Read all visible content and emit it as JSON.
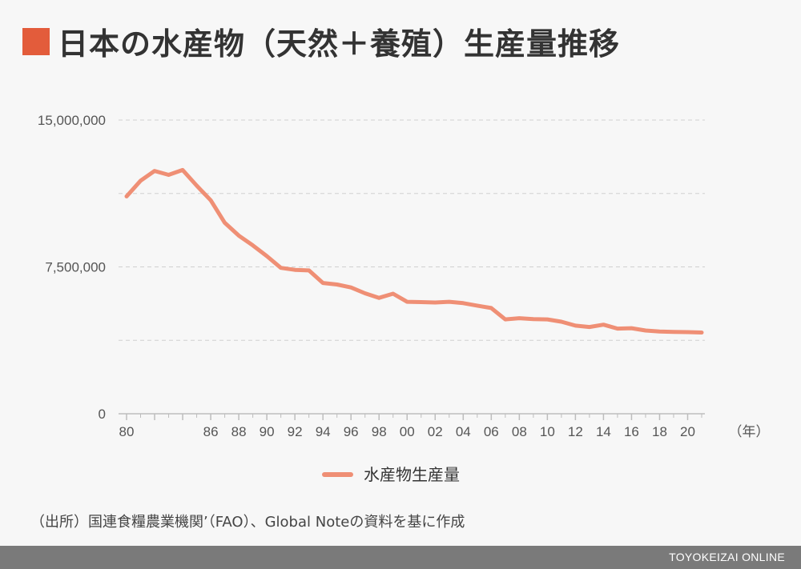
{
  "title": "日本の水産物（天然＋養殖）生産量推移",
  "source": "（出所）国連食糧農業機関’（FAO）、Global Noteの資料を基に作成",
  "brand": "TOYOKEIZAI ONLINE",
  "colors": {
    "title_square": "#e35c3b",
    "series_line": "#ef8f75",
    "grid": "#d0d0d0",
    "axis": "#bdbdbd",
    "text": "#555555",
    "footer": "#7a7a7a"
  },
  "chart_data": {
    "type": "line",
    "x_unit_label": "（年）",
    "ylim": [
      0,
      15000000
    ],
    "y_gridlines": [
      0,
      3750000,
      7500000,
      11250000,
      15000000
    ],
    "y_tick_labels": [
      {
        "value": 0,
        "label": "0"
      },
      {
        "value": 7500000,
        "label": "7,500,000"
      },
      {
        "value": 15000000,
        "label": "15,000,000"
      }
    ],
    "x_range": [
      1980,
      2021
    ],
    "x_tick_labels": [
      {
        "year": 1980,
        "label": "80"
      },
      {
        "year": 1982,
        "label": ""
      },
      {
        "year": 1984,
        "label": ""
      },
      {
        "year": 1986,
        "label": "86"
      },
      {
        "year": 1988,
        "label": "88"
      },
      {
        "year": 1990,
        "label": "90"
      },
      {
        "year": 1992,
        "label": "92"
      },
      {
        "year": 1994,
        "label": "94"
      },
      {
        "year": 1996,
        "label": "96"
      },
      {
        "year": 1998,
        "label": "98"
      },
      {
        "year": 2000,
        "label": "00"
      },
      {
        "year": 2002,
        "label": "02"
      },
      {
        "year": 2004,
        "label": "04"
      },
      {
        "year": 2006,
        "label": "06"
      },
      {
        "year": 2008,
        "label": "08"
      },
      {
        "year": 2010,
        "label": "10"
      },
      {
        "year": 2012,
        "label": "12"
      },
      {
        "year": 2014,
        "label": "14"
      },
      {
        "year": 2016,
        "label": "16"
      },
      {
        "year": 2018,
        "label": "18"
      },
      {
        "year": 2020,
        "label": "20"
      }
    ],
    "x_minor_ticks": [
      1981,
      1983,
      1985,
      1987,
      1989,
      1991,
      1993,
      1995,
      1997,
      1999,
      2001,
      2003,
      2005,
      2007,
      2009,
      2011,
      2013,
      2015,
      2017,
      2019,
      2021
    ],
    "legend_position": "bottom-center",
    "series": [
      {
        "name": "水産物生産量",
        "x": [
          1980,
          1981,
          1982,
          1983,
          1984,
          1985,
          1986,
          1987,
          1988,
          1989,
          1990,
          1991,
          1992,
          1993,
          1994,
          1995,
          1996,
          1997,
          1998,
          1999,
          2000,
          2001,
          2002,
          2003,
          2004,
          2005,
          2006,
          2007,
          2008,
          2009,
          2010,
          2011,
          2012,
          2013,
          2014,
          2015,
          2016,
          2017,
          2018,
          2019,
          2020,
          2021
        ],
        "y": [
          11100000,
          11900000,
          12400000,
          12200000,
          12450000,
          11650000,
          10900000,
          9750000,
          9100000,
          8600000,
          8050000,
          7450000,
          7350000,
          7320000,
          6680000,
          6600000,
          6450000,
          6150000,
          5920000,
          6130000,
          5720000,
          5700000,
          5680000,
          5720000,
          5650000,
          5520000,
          5400000,
          4820000,
          4880000,
          4830000,
          4820000,
          4700000,
          4500000,
          4430000,
          4550000,
          4350000,
          4370000,
          4250000,
          4200000,
          4180000,
          4170000,
          4150000
        ]
      }
    ]
  }
}
